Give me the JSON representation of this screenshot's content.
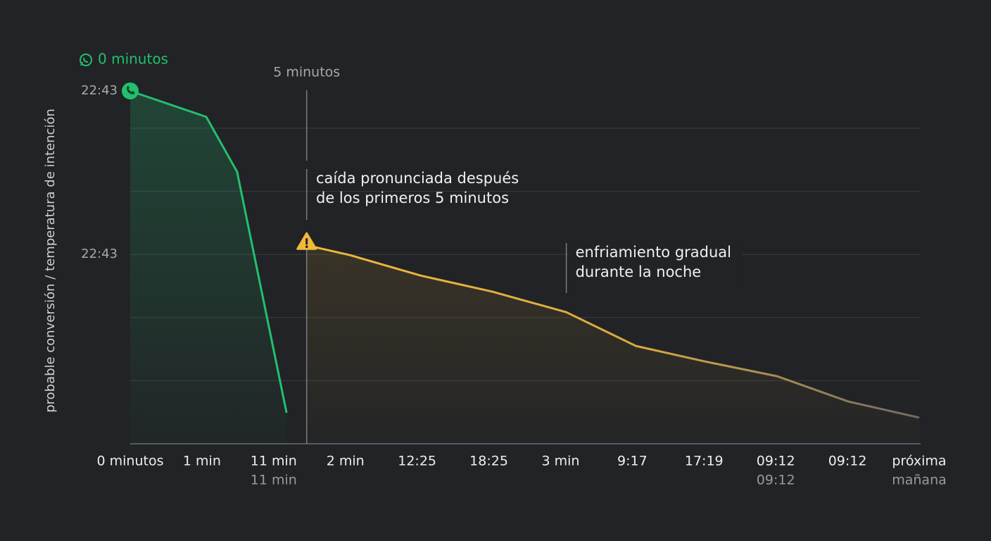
{
  "chart_data": {
    "type": "line",
    "title": "0 minutos",
    "y_label": "probable conversión / temperatura de intención",
    "categories": [
      "0 minutos",
      "1 min",
      "11 min",
      "2 min",
      "12:25",
      "18:25",
      "3 min",
      "9:17",
      "17:19",
      "09:12",
      "09:12",
      "próxima"
    ],
    "category_notes": [
      null,
      null,
      "11 min",
      null,
      null,
      null,
      null,
      null,
      null,
      "09:12",
      null,
      "mañana"
    ],
    "xlim": [
      0,
      11
    ],
    "ylim": [
      0,
      120
    ],
    "yticks": [
      {
        "value": 111.8,
        "label": "22:43"
      },
      {
        "value": 60,
        "label": "22:43"
      }
    ],
    "ygrid": [
      20,
      40,
      60,
      80,
      100
    ],
    "series": [
      {
        "color": "#22c06e",
        "x": [
          0,
          1.06,
          1.49,
          2.18
        ],
        "values": [
          111.8,
          103.6,
          86.2,
          9.8
        ]
      },
      {
        "color": "#f0b93a",
        "x": [
          2.46,
          3.06,
          4.05,
          5.05,
          6.08,
          7.05,
          8.01,
          9.02,
          10.01,
          11
        ],
        "values": [
          62.9,
          59.8,
          53.3,
          48.2,
          41.7,
          31.0,
          26.1,
          21.4,
          13.4,
          8.3
        ]
      }
    ],
    "annotations": [
      {
        "x": 2.46,
        "label": "5 minutos",
        "text": [
          "caída pronunciada después",
          "de los primeros 5 minutos"
        ]
      },
      {
        "x": 6.08,
        "text": [
          "enfriamiento gradual",
          "durante la noche"
        ]
      }
    ]
  }
}
